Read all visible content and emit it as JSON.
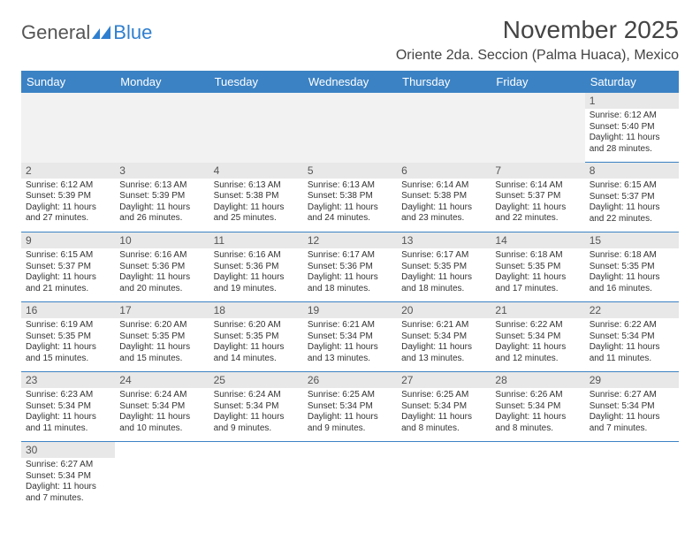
{
  "brand": {
    "part1": "General",
    "part2": "Blue"
  },
  "title": "November 2025",
  "subtitle": "Oriente 2da. Seccion (Palma Huaca), Mexico",
  "colors": {
    "header_bg": "#3b82c4",
    "header_text": "#ffffff",
    "daynum_bg": "#e8e8e8",
    "rule": "#3b82c4",
    "brand_gray": "#555555",
    "brand_blue": "#2f7fcf",
    "text": "#333333"
  },
  "columns": [
    "Sunday",
    "Monday",
    "Tuesday",
    "Wednesday",
    "Thursday",
    "Friday",
    "Saturday"
  ],
  "weeks": [
    [
      null,
      null,
      null,
      null,
      null,
      null,
      {
        "n": "1",
        "sr": "Sunrise: 6:12 AM",
        "ss": "Sunset: 5:40 PM",
        "d1": "Daylight: 11 hours",
        "d2": "and 28 minutes."
      }
    ],
    [
      {
        "n": "2",
        "sr": "Sunrise: 6:12 AM",
        "ss": "Sunset: 5:39 PM",
        "d1": "Daylight: 11 hours",
        "d2": "and 27 minutes."
      },
      {
        "n": "3",
        "sr": "Sunrise: 6:13 AM",
        "ss": "Sunset: 5:39 PM",
        "d1": "Daylight: 11 hours",
        "d2": "and 26 minutes."
      },
      {
        "n": "4",
        "sr": "Sunrise: 6:13 AM",
        "ss": "Sunset: 5:38 PM",
        "d1": "Daylight: 11 hours",
        "d2": "and 25 minutes."
      },
      {
        "n": "5",
        "sr": "Sunrise: 6:13 AM",
        "ss": "Sunset: 5:38 PM",
        "d1": "Daylight: 11 hours",
        "d2": "and 24 minutes."
      },
      {
        "n": "6",
        "sr": "Sunrise: 6:14 AM",
        "ss": "Sunset: 5:38 PM",
        "d1": "Daylight: 11 hours",
        "d2": "and 23 minutes."
      },
      {
        "n": "7",
        "sr": "Sunrise: 6:14 AM",
        "ss": "Sunset: 5:37 PM",
        "d1": "Daylight: 11 hours",
        "d2": "and 22 minutes."
      },
      {
        "n": "8",
        "sr": "Sunrise: 6:15 AM",
        "ss": "Sunset: 5:37 PM",
        "d1": "Daylight: 11 hours",
        "d2": "and 22 minutes."
      }
    ],
    [
      {
        "n": "9",
        "sr": "Sunrise: 6:15 AM",
        "ss": "Sunset: 5:37 PM",
        "d1": "Daylight: 11 hours",
        "d2": "and 21 minutes."
      },
      {
        "n": "10",
        "sr": "Sunrise: 6:16 AM",
        "ss": "Sunset: 5:36 PM",
        "d1": "Daylight: 11 hours",
        "d2": "and 20 minutes."
      },
      {
        "n": "11",
        "sr": "Sunrise: 6:16 AM",
        "ss": "Sunset: 5:36 PM",
        "d1": "Daylight: 11 hours",
        "d2": "and 19 minutes."
      },
      {
        "n": "12",
        "sr": "Sunrise: 6:17 AM",
        "ss": "Sunset: 5:36 PM",
        "d1": "Daylight: 11 hours",
        "d2": "and 18 minutes."
      },
      {
        "n": "13",
        "sr": "Sunrise: 6:17 AM",
        "ss": "Sunset: 5:35 PM",
        "d1": "Daylight: 11 hours",
        "d2": "and 18 minutes."
      },
      {
        "n": "14",
        "sr": "Sunrise: 6:18 AM",
        "ss": "Sunset: 5:35 PM",
        "d1": "Daylight: 11 hours",
        "d2": "and 17 minutes."
      },
      {
        "n": "15",
        "sr": "Sunrise: 6:18 AM",
        "ss": "Sunset: 5:35 PM",
        "d1": "Daylight: 11 hours",
        "d2": "and 16 minutes."
      }
    ],
    [
      {
        "n": "16",
        "sr": "Sunrise: 6:19 AM",
        "ss": "Sunset: 5:35 PM",
        "d1": "Daylight: 11 hours",
        "d2": "and 15 minutes."
      },
      {
        "n": "17",
        "sr": "Sunrise: 6:20 AM",
        "ss": "Sunset: 5:35 PM",
        "d1": "Daylight: 11 hours",
        "d2": "and 15 minutes."
      },
      {
        "n": "18",
        "sr": "Sunrise: 6:20 AM",
        "ss": "Sunset: 5:35 PM",
        "d1": "Daylight: 11 hours",
        "d2": "and 14 minutes."
      },
      {
        "n": "19",
        "sr": "Sunrise: 6:21 AM",
        "ss": "Sunset: 5:34 PM",
        "d1": "Daylight: 11 hours",
        "d2": "and 13 minutes."
      },
      {
        "n": "20",
        "sr": "Sunrise: 6:21 AM",
        "ss": "Sunset: 5:34 PM",
        "d1": "Daylight: 11 hours",
        "d2": "and 13 minutes."
      },
      {
        "n": "21",
        "sr": "Sunrise: 6:22 AM",
        "ss": "Sunset: 5:34 PM",
        "d1": "Daylight: 11 hours",
        "d2": "and 12 minutes."
      },
      {
        "n": "22",
        "sr": "Sunrise: 6:22 AM",
        "ss": "Sunset: 5:34 PM",
        "d1": "Daylight: 11 hours",
        "d2": "and 11 minutes."
      }
    ],
    [
      {
        "n": "23",
        "sr": "Sunrise: 6:23 AM",
        "ss": "Sunset: 5:34 PM",
        "d1": "Daylight: 11 hours",
        "d2": "and 11 minutes."
      },
      {
        "n": "24",
        "sr": "Sunrise: 6:24 AM",
        "ss": "Sunset: 5:34 PM",
        "d1": "Daylight: 11 hours",
        "d2": "and 10 minutes."
      },
      {
        "n": "25",
        "sr": "Sunrise: 6:24 AM",
        "ss": "Sunset: 5:34 PM",
        "d1": "Daylight: 11 hours",
        "d2": "and 9 minutes."
      },
      {
        "n": "26",
        "sr": "Sunrise: 6:25 AM",
        "ss": "Sunset: 5:34 PM",
        "d1": "Daylight: 11 hours",
        "d2": "and 9 minutes."
      },
      {
        "n": "27",
        "sr": "Sunrise: 6:25 AM",
        "ss": "Sunset: 5:34 PM",
        "d1": "Daylight: 11 hours",
        "d2": "and 8 minutes."
      },
      {
        "n": "28",
        "sr": "Sunrise: 6:26 AM",
        "ss": "Sunset: 5:34 PM",
        "d1": "Daylight: 11 hours",
        "d2": "and 8 minutes."
      },
      {
        "n": "29",
        "sr": "Sunrise: 6:27 AM",
        "ss": "Sunset: 5:34 PM",
        "d1": "Daylight: 11 hours",
        "d2": "and 7 minutes."
      }
    ],
    [
      {
        "n": "30",
        "sr": "Sunrise: 6:27 AM",
        "ss": "Sunset: 5:34 PM",
        "d1": "Daylight: 11 hours",
        "d2": "and 7 minutes."
      },
      null,
      null,
      null,
      null,
      null,
      null
    ]
  ]
}
